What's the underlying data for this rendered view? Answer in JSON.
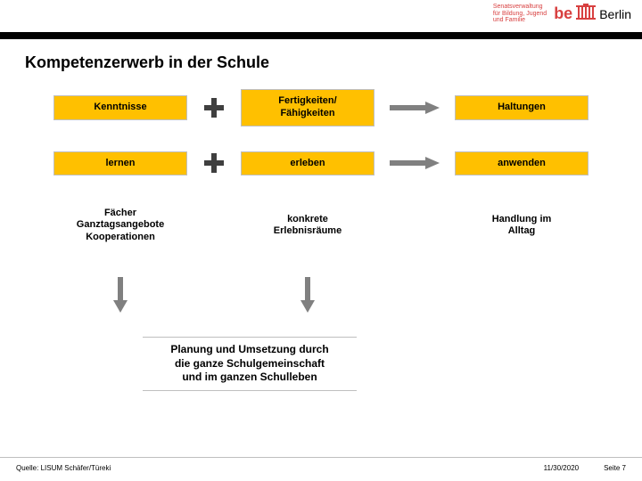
{
  "colors": {
    "box_bg": "#ffc000",
    "box_border": "#bfbfbf",
    "accent_red": "#e2001a",
    "logo_red": "#d84040",
    "black": "#000000",
    "plus_fill": "#3f3f3f",
    "arrow_fill": "#808080"
  },
  "header": {
    "ministry_line1": "Senatsverwaltung",
    "ministry_line2": "für Bildung, Jugend",
    "ministry_line3": "und Familie",
    "berlin_be": "be",
    "berlin_name": "Berlin"
  },
  "title": "Kompetenzerwerb in der Schule",
  "diagram": {
    "type": "flowchart",
    "rows": [
      {
        "style": "boxed",
        "left": "Kenntnisse",
        "connector1": "plus",
        "middle": "Fertigkeiten/\nFähigkeiten",
        "connector2": "arrow-right",
        "right": "Haltungen"
      },
      {
        "style": "boxed",
        "left": "lernen",
        "connector1": "plus",
        "middle": "erleben",
        "connector2": "arrow-right",
        "right": "anwenden"
      },
      {
        "style": "plain",
        "left": "Fächer\nGanztagsangebote\nKooperationen",
        "connector1": "none",
        "middle": "konkrete\nErlebnisräume",
        "connector2": "none",
        "right": "Handlung im\nAlltag"
      }
    ],
    "down_arrows_under": [
      "left",
      "middle"
    ],
    "planning_text": "Planung und Umsetzung durch\ndie ganze Schulgemeinschaft\nund im ganzen Schulleben",
    "box_font_size": 11,
    "planning_font_size": 12
  },
  "footer": {
    "source": "Quelle: LISUM Schäfer/Türeki",
    "date": "11/30/2020",
    "page": "Seite 7"
  }
}
